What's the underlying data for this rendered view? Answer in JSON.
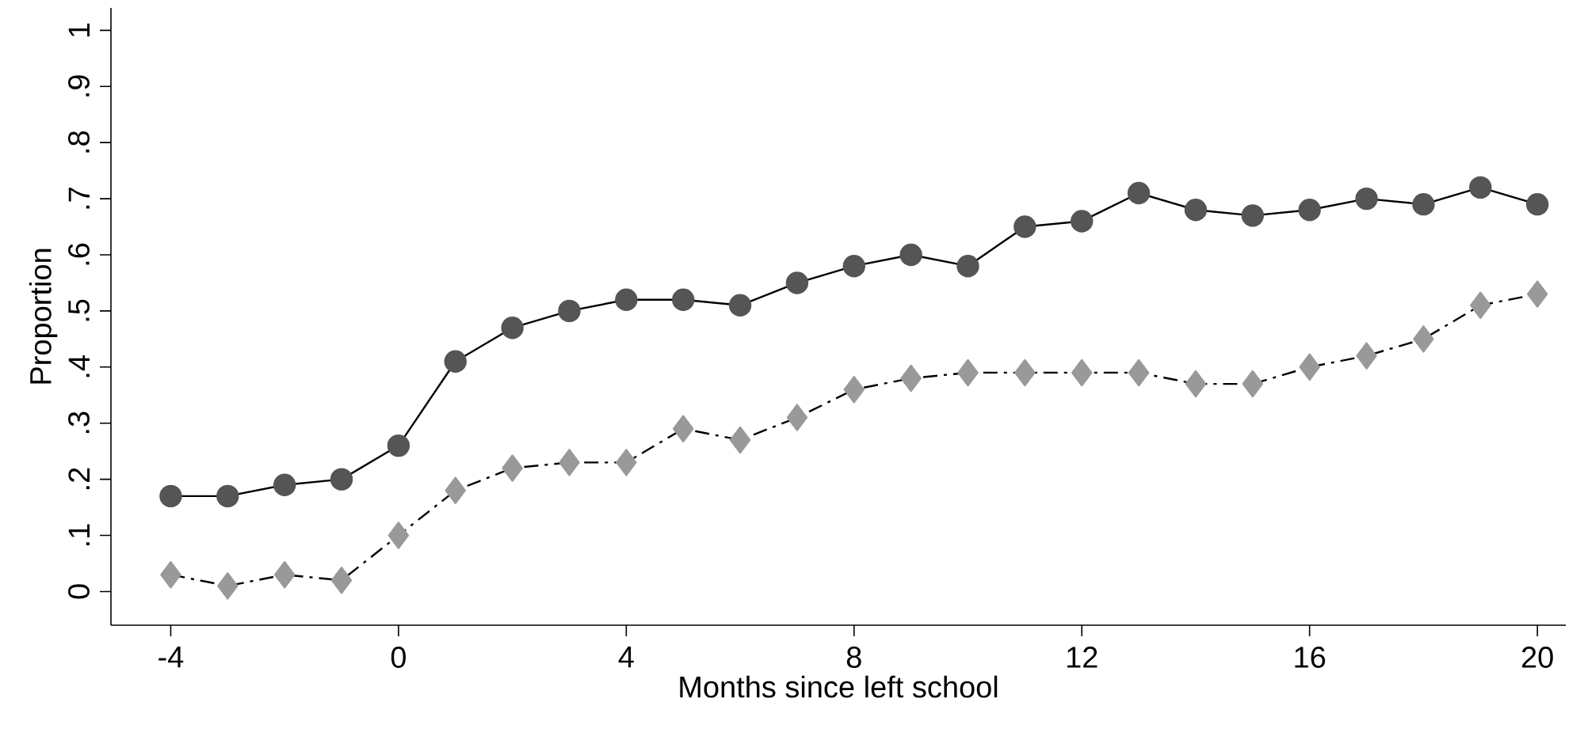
{
  "chart_data": {
    "type": "line",
    "xlabel": "Months since left school",
    "ylabel": "Proportion",
    "x": [
      -4,
      -3,
      -2,
      -1,
      0,
      1,
      2,
      3,
      4,
      5,
      6,
      7,
      8,
      9,
      10,
      11,
      12,
      13,
      14,
      15,
      16,
      17,
      18,
      19,
      20
    ],
    "series": [
      {
        "color": "#555555",
        "marker": "circle",
        "line_style": "solid",
        "values": [
          0.17,
          0.17,
          0.19,
          0.2,
          0.26,
          0.41,
          0.47,
          0.5,
          0.52,
          0.52,
          0.51,
          0.55,
          0.58,
          0.6,
          0.58,
          0.65,
          0.66,
          0.71,
          0.68,
          0.67,
          0.68,
          0.7,
          0.69,
          0.72,
          0.69
        ]
      },
      {
        "color": "#999999",
        "marker": "diamond",
        "line_style": "dashed",
        "values": [
          0.03,
          0.01,
          0.03,
          0.02,
          0.1,
          0.18,
          0.22,
          0.23,
          0.23,
          0.29,
          0.27,
          0.31,
          0.36,
          0.38,
          0.39,
          0.39,
          0.39,
          0.39,
          0.37,
          0.37,
          0.4,
          0.42,
          0.45,
          0.51,
          0.53
        ]
      }
    ],
    "xlim": [
      -5.05,
      20.5
    ],
    "ylim": [
      -0.06,
      1.04
    ],
    "xticks": [
      -4,
      0,
      4,
      8,
      12,
      16,
      20
    ],
    "yticks": [
      0,
      {
        "value": 0.1,
        "label": ".1"
      },
      {
        "value": 0.2,
        "label": ".2"
      },
      {
        "value": 0.3,
        "label": ".3"
      },
      {
        "value": 0.4,
        "label": ".4"
      },
      {
        "value": 0.5,
        "label": ".5"
      },
      {
        "value": 0.6,
        "label": ".6"
      },
      {
        "value": 0.7,
        "label": ".7"
      },
      {
        "value": 0.8,
        "label": ".8"
      },
      {
        "value": 0.9,
        "label": ".9"
      },
      1
    ]
  }
}
